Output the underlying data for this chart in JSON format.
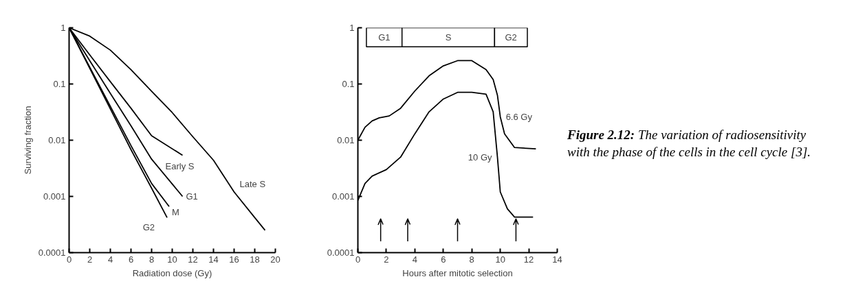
{
  "chart_data": [
    {
      "type": "line",
      "xlabel": "Radiation dose (Gy)",
      "ylabel": "Surviving fraction",
      "log": "y",
      "grid": false,
      "xlim": [
        0,
        20
      ],
      "xticks": [
        0,
        2,
        4,
        6,
        8,
        10,
        12,
        14,
        16,
        18,
        20
      ],
      "ylim": [
        0.0001,
        1
      ],
      "yticks": [
        0.0001,
        0.001,
        0.01,
        0.1,
        1
      ],
      "series": [
        {
          "name": "G2",
          "color": "#000000",
          "x": [
            0,
            2,
            4,
            6,
            8,
            9.5
          ],
          "values": [
            1,
            0.19,
            0.036,
            0.0068,
            0.0014,
            0.00042
          ]
        },
        {
          "name": "M",
          "color": "#000000",
          "x": [
            0,
            2,
            4,
            6,
            8,
            9.7
          ],
          "values": [
            1,
            0.2,
            0.04,
            0.008,
            0.0017,
            0.00066
          ]
        },
        {
          "name": "G1",
          "color": "#000000",
          "x": [
            0,
            2,
            4,
            6,
            8,
            11
          ],
          "values": [
            1,
            0.26,
            0.068,
            0.018,
            0.0046,
            0.001
          ]
        },
        {
          "name": "Early S",
          "color": "#000000",
          "x": [
            0,
            2,
            4,
            6,
            8,
            11
          ],
          "values": [
            1,
            0.33,
            0.11,
            0.037,
            0.012,
            0.0054
          ]
        },
        {
          "name": "Late S",
          "color": "#000000",
          "x": [
            0,
            2,
            4,
            6,
            8,
            10,
            12,
            14,
            16,
            18,
            19
          ],
          "values": [
            1,
            0.71,
            0.4,
            0.18,
            0.074,
            0.031,
            0.0115,
            0.0044,
            0.0012,
            0.00042,
            0.00025
          ]
        }
      ]
    },
    {
      "type": "line",
      "xlabel": "Hours after mitotic selection",
      "log": "y",
      "grid": false,
      "xlim": [
        0,
        14
      ],
      "xticks": [
        0,
        2,
        4,
        6,
        8,
        10,
        12,
        14
      ],
      "ylim": [
        0.0001,
        1
      ],
      "yticks": [
        0.0001,
        0.001,
        0.01,
        0.1,
        1
      ],
      "bands": [
        {
          "axis": "x",
          "from": 0.6,
          "to": 3.1,
          "label": "G1"
        },
        {
          "axis": "x",
          "from": 3.1,
          "to": 9.6,
          "label": "S"
        },
        {
          "axis": "x",
          "from": 9.6,
          "to": 11.9,
          "label": "G2"
        }
      ],
      "ref_lines": [
        {
          "axis": "x",
          "value": 1.6
        },
        {
          "axis": "x",
          "value": 3.5
        },
        {
          "axis": "x",
          "value": 7
        },
        {
          "axis": "x",
          "value": 11.1
        }
      ],
      "series": [
        {
          "name": "6.6 Gy",
          "color": "#000000",
          "x": [
            0,
            0.5,
            1,
            1.5,
            2.2,
            3,
            4,
            5,
            6,
            7,
            8,
            9,
            9.5,
            9.8,
            10,
            10.3,
            11,
            12.5
          ],
          "values": [
            0.01,
            0.017,
            0.022,
            0.025,
            0.027,
            0.037,
            0.075,
            0.14,
            0.21,
            0.26,
            0.26,
            0.18,
            0.12,
            0.063,
            0.026,
            0.013,
            0.0074,
            0.007
          ]
        },
        {
          "name": "10 Gy",
          "color": "#000000",
          "x": [
            0,
            0.5,
            1,
            2,
            3,
            4,
            5,
            6,
            7,
            8,
            9,
            9.5,
            9.8,
            10,
            10.5,
            11,
            12.3
          ],
          "values": [
            0.00085,
            0.0017,
            0.0023,
            0.003,
            0.005,
            0.013,
            0.032,
            0.054,
            0.071,
            0.071,
            0.066,
            0.032,
            0.005,
            0.0012,
            0.0006,
            0.00043,
            0.00043
          ]
        }
      ]
    },
    {
      "type": "other",
      "annotations": [
        "Figure 2.12: The variation of radiosensitivity with the phase of the cells in the cell cycle [3]."
      ]
    }
  ]
}
